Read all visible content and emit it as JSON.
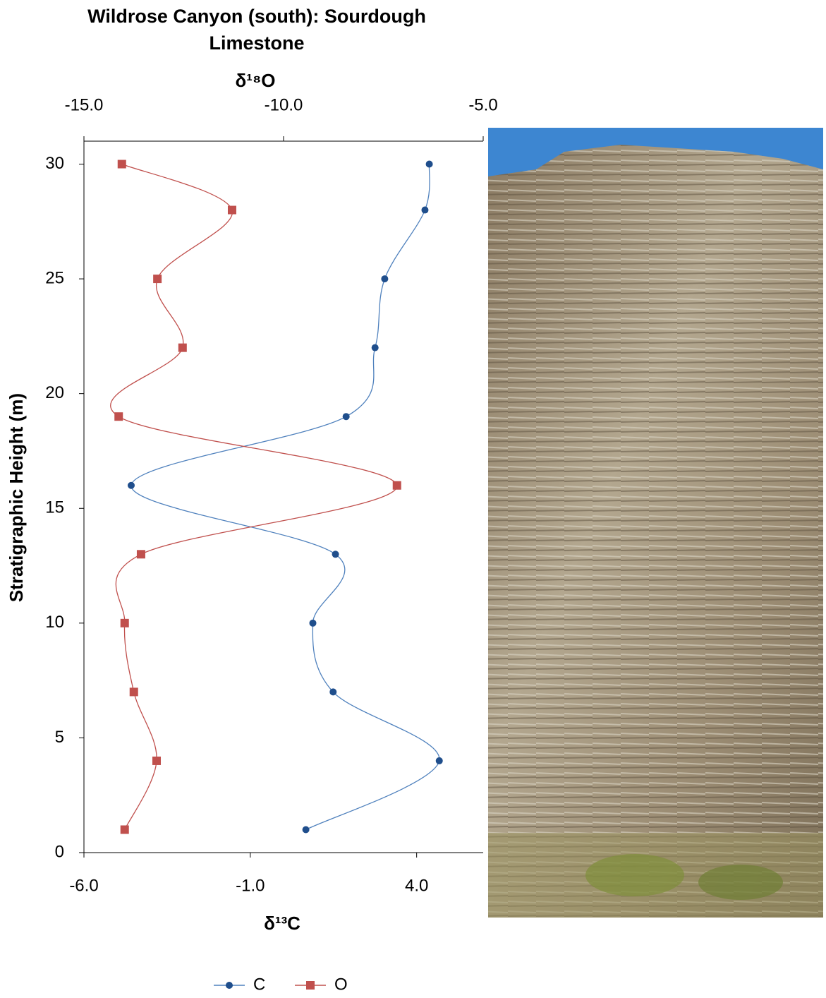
{
  "chart_data": {
    "type": "scatter",
    "title": "Wildrose Canyon (south): Sourdough Limestone",
    "x_label": "δ¹³C",
    "x2_label": "δ¹⁸O",
    "y_label": "Stratigraphic Height (m)",
    "xlim": [
      -6,
      6
    ],
    "xticks": [
      -6.0,
      -1.0,
      4.0
    ],
    "x2lim": [
      -15,
      -5
    ],
    "x2ticks": [
      -15.0,
      -10.0,
      -5.0
    ],
    "ylim": [
      0,
      31
    ],
    "yticks": [
      0,
      5,
      10,
      15,
      20,
      25,
      30
    ],
    "xtick_labels": [
      "-6.0",
      "-1.0",
      "4.0"
    ],
    "x2tick_labels": [
      "-15.0",
      "-10.0",
      "-5.0"
    ],
    "grid": false,
    "legend": "bottom",
    "series": [
      {
        "name": "C",
        "color": "#1f4e8c",
        "line_color": "#4f81bd",
        "marker": "circle",
        "axis": "x",
        "x": [
          4.38,
          4.25,
          3.04,
          2.75,
          1.88,
          -4.58,
          1.56,
          0.88,
          1.49,
          4.68,
          0.67
        ],
        "y": [
          30,
          28,
          25,
          22,
          19,
          16,
          13,
          10,
          7,
          4,
          1
        ]
      },
      {
        "name": "O",
        "color": "#c0504d",
        "line_color": "#c0504d",
        "marker": "square",
        "axis": "x2",
        "x": [
          -14.05,
          -11.29,
          -13.16,
          -12.53,
          -14.13,
          -7.16,
          -13.57,
          -13.98,
          -13.75,
          -13.18,
          -13.98
        ],
        "y": [
          30,
          28,
          25,
          22,
          19,
          16,
          13,
          10,
          7,
          4,
          1
        ]
      }
    ]
  }
}
